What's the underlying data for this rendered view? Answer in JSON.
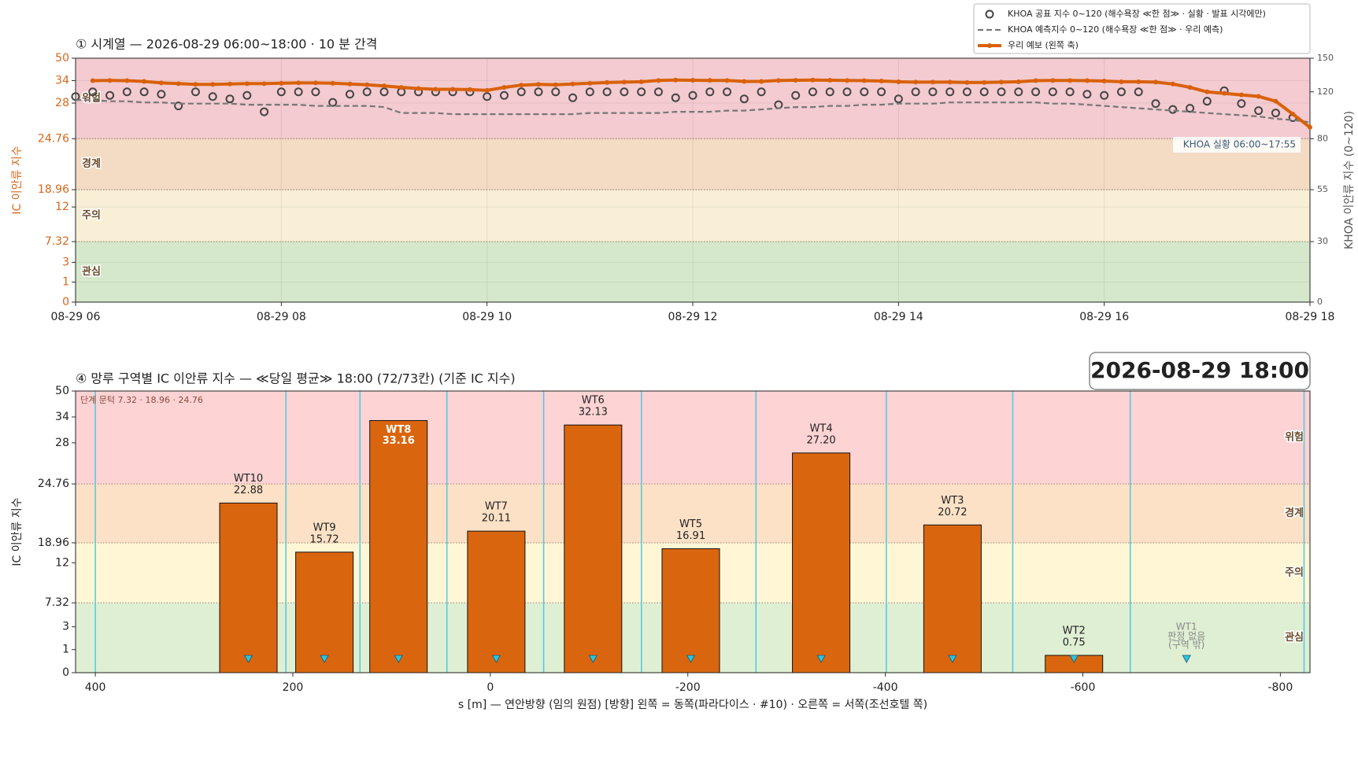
{
  "chart_data": [
    {
      "type": "line",
      "title": "① 시계열 — 2026-08-29 06:00~18:00 · 10 분 간격",
      "ylabel": "IC 이안류 지수",
      "y2label": "KHOA 이안류 지수 (0~120)",
      "x": [
        "08-29 06:00",
        "08-29 06:10",
        "08-29 06:20",
        "08-29 06:30",
        "08-29 06:40",
        "08-29 06:50",
        "08-29 07:00",
        "08-29 07:10",
        "08-29 07:20",
        "08-29 07:30",
        "08-29 07:40",
        "08-29 07:50",
        "08-29 08:00",
        "08-29 08:10",
        "08-29 08:20",
        "08-29 08:30",
        "08-29 08:40",
        "08-29 08:50",
        "08-29 09:00",
        "08-29 09:10",
        "08-29 09:20",
        "08-29 09:30",
        "08-29 09:40",
        "08-29 09:50",
        "08-29 10:00",
        "08-29 10:10",
        "08-29 10:20",
        "08-29 10:30",
        "08-29 10:40",
        "08-29 10:50",
        "08-29 11:00",
        "08-29 11:10",
        "08-29 11:20",
        "08-29 11:30",
        "08-29 11:40",
        "08-29 11:50",
        "08-29 12:00",
        "08-29 12:10",
        "08-29 12:20",
        "08-29 12:30",
        "08-29 12:40",
        "08-29 12:50",
        "08-29 13:00",
        "08-29 13:10",
        "08-29 13:20",
        "08-29 13:30",
        "08-29 13:40",
        "08-29 13:50",
        "08-29 14:00",
        "08-29 14:10",
        "08-29 14:20",
        "08-29 14:30",
        "08-29 14:40",
        "08-29 14:50",
        "08-29 15:00",
        "08-29 15:10",
        "08-29 15:20",
        "08-29 15:30",
        "08-29 15:40",
        "08-29 15:50",
        "08-29 16:00",
        "08-29 16:10",
        "08-29 16:20",
        "08-29 16:30",
        "08-29 16:40",
        "08-29 16:50",
        "08-29 17:00",
        "08-29 17:10",
        "08-29 17:20",
        "08-29 17:30",
        "08-29 17:40",
        "08-29 17:50",
        "08-29 18:00"
      ],
      "xlim": [
        "08-29 06",
        "08-29 18"
      ],
      "xticks": [
        "08-29 06",
        "08-29 08",
        "08-29 10",
        "08-29 12",
        "08-29 14",
        "08-29 16",
        "08-29 18"
      ],
      "ylim": [
        0,
        50
      ],
      "yticks": [
        0,
        1,
        3,
        7.32,
        12,
        18.96,
        24.76,
        28,
        34,
        50
      ],
      "y2lim": [
        0,
        150
      ],
      "y2ticks": [
        0,
        30,
        55,
        80,
        120,
        150
      ],
      "series": [
        {
          "name": "KHOA 공표 지수 0~120 (해수욕장 ≪한 점≫ · 실황 · 발표 시각에만)",
          "color": "#444444",
          "axis": "y2",
          "marker": "circle",
          "values": [
            116,
            120,
            117,
            120,
            120,
            118,
            108,
            120,
            116,
            114,
            117,
            103,
            120,
            120,
            120,
            111,
            118,
            120,
            120,
            120,
            120,
            120,
            120,
            120,
            116,
            117,
            120,
            120,
            120,
            115,
            120,
            120,
            120,
            120,
            120,
            115,
            117,
            120,
            120,
            114,
            120,
            109,
            117,
            120,
            120,
            120,
            120,
            120,
            114,
            120,
            120,
            120,
            120,
            120,
            120,
            120,
            120,
            120,
            120,
            118,
            117,
            120,
            120,
            110,
            105,
            106,
            112,
            121,
            110,
            104,
            102,
            98,
            null
          ]
        },
        {
          "name": "KHOA 예측지수 0~120 (해수욕장 ≪한 점≫ · 우리 예측)",
          "color": "#777777",
          "axis": "y2",
          "style": "dashed",
          "values": [
            113,
            113,
            112,
            112,
            111,
            111,
            110,
            110,
            110,
            110,
            109,
            109,
            109,
            109,
            108,
            108,
            108,
            108,
            107,
            102,
            102,
            102,
            101,
            101,
            101,
            101,
            101,
            101,
            101,
            101,
            102,
            102,
            102,
            102,
            102,
            103,
            103,
            103,
            104,
            104,
            105,
            106,
            107,
            107,
            108,
            108,
            109,
            109,
            110,
            110,
            110,
            111,
            111,
            111,
            111,
            111,
            111,
            110,
            110,
            109,
            108,
            107,
            106,
            105,
            104,
            103,
            102,
            101,
            100,
            99,
            97,
            96,
            94
          ]
        },
        {
          "name": "우리 예보 (왼쪽 축)",
          "color": "#d9610b",
          "style": "solid",
          "values": [
            null,
            34.0,
            34.1,
            34.0,
            33.8,
            33.4,
            33.2,
            33.0,
            33.0,
            33.1,
            33.2,
            33.2,
            33.3,
            33.4,
            33.4,
            33.3,
            33.1,
            32.9,
            32.6,
            32.2,
            31.9,
            31.7,
            31.7,
            31.6,
            31.4,
            32.2,
            32.8,
            33.0,
            32.9,
            33.1,
            33.3,
            33.5,
            33.6,
            33.7,
            34.1,
            34.4,
            34.3,
            34.2,
            34.1,
            33.8,
            33.8,
            34.1,
            34.3,
            34.4,
            34.3,
            34.1,
            34.0,
            33.9,
            33.7,
            33.6,
            33.6,
            33.6,
            33.5,
            33.5,
            33.6,
            33.7,
            34.0,
            34.1,
            34.1,
            34.0,
            33.9,
            33.7,
            33.7,
            33.6,
            33.1,
            32.2,
            31.0,
            30.6,
            30.2,
            29.8,
            28.5,
            27.0,
            25.8
          ]
        }
      ],
      "legend": "upper right",
      "annotation": "KHOA 실황 06:00~17:55",
      "grid": true,
      "bands": [
        {
          "label": "관심",
          "from": 0,
          "to": 7.32,
          "color": "#d5e8cb"
        },
        {
          "label": "주의",
          "from": 7.32,
          "to": 18.96,
          "color": "#f8efd6"
        },
        {
          "label": "경계",
          "from": 18.96,
          "to": 24.76,
          "color": "#f3dbc4"
        },
        {
          "label": "위험",
          "from": 24.76,
          "to": 50,
          "color": "#f3cbd0"
        }
      ]
    },
    {
      "type": "bar",
      "title": "④ 망루 구역별 IC 이안류 지수 — ≪당일 평균≫ 18:00  (72/73칸)   (기준 IC 지수)",
      "timestamp": "2026-08-29  18:00",
      "note": "단계 문턱 7.32 · 18.96 · 24.76",
      "ylabel": "IC 이안류 지수",
      "xlabel": "s [m] — 연안방향 (임의 원점)     [방향] 왼쪽 = 동쪽(파라다이스 · #10) · 오른쪽 = 서쪽(조선호텔 쪽)",
      "categories": [
        "WT10",
        "WT9",
        "WT8",
        "WT7",
        "WT6",
        "WT5",
        "WT4",
        "WT3",
        "WT2",
        "WT1"
      ],
      "x": [
        245,
        168,
        93,
        -6,
        -104,
        -203,
        -335,
        -468,
        -591,
        -705
      ],
      "values": [
        22.88,
        15.72,
        33.16,
        20.11,
        32.13,
        16.91,
        27.2,
        20.72,
        0.75,
        null
      ],
      "value_labels": [
        "22.88",
        "15.72",
        "33.16",
        "20.11",
        "32.13",
        "16.91",
        "27.20",
        "20.72",
        "0.75",
        null
      ],
      "no_value_label": [
        "판정 없음",
        "(구역 밖)"
      ],
      "color": "#d9660f",
      "marker_color": "#2ec4e0",
      "boundaries": [
        400,
        207,
        132,
        44,
        -54,
        -153,
        -269,
        -401,
        -529,
        -648,
        -824
      ],
      "boundary_color": "#4fc8e3",
      "xlim": [
        420,
        -830
      ],
      "xticks": [
        400,
        200,
        0,
        -200,
        -400,
        -600,
        -800
      ],
      "ylim": [
        0,
        50
      ],
      "yticks": [
        0,
        1,
        3,
        7.32,
        12,
        18.96,
        24.76,
        28,
        34,
        50
      ],
      "grid": false,
      "bands": [
        {
          "label": "관심",
          "from": 0,
          "to": 7.32,
          "color": "#dfefd3"
        },
        {
          "label": "주의",
          "from": 7.32,
          "to": 18.96,
          "color": "#fff6d5"
        },
        {
          "label": "경계",
          "from": 18.96,
          "to": 24.76,
          "color": "#fde1c6"
        },
        {
          "label": "위험",
          "from": 24.76,
          "to": 50,
          "color": "#fdd3d4"
        }
      ]
    }
  ]
}
